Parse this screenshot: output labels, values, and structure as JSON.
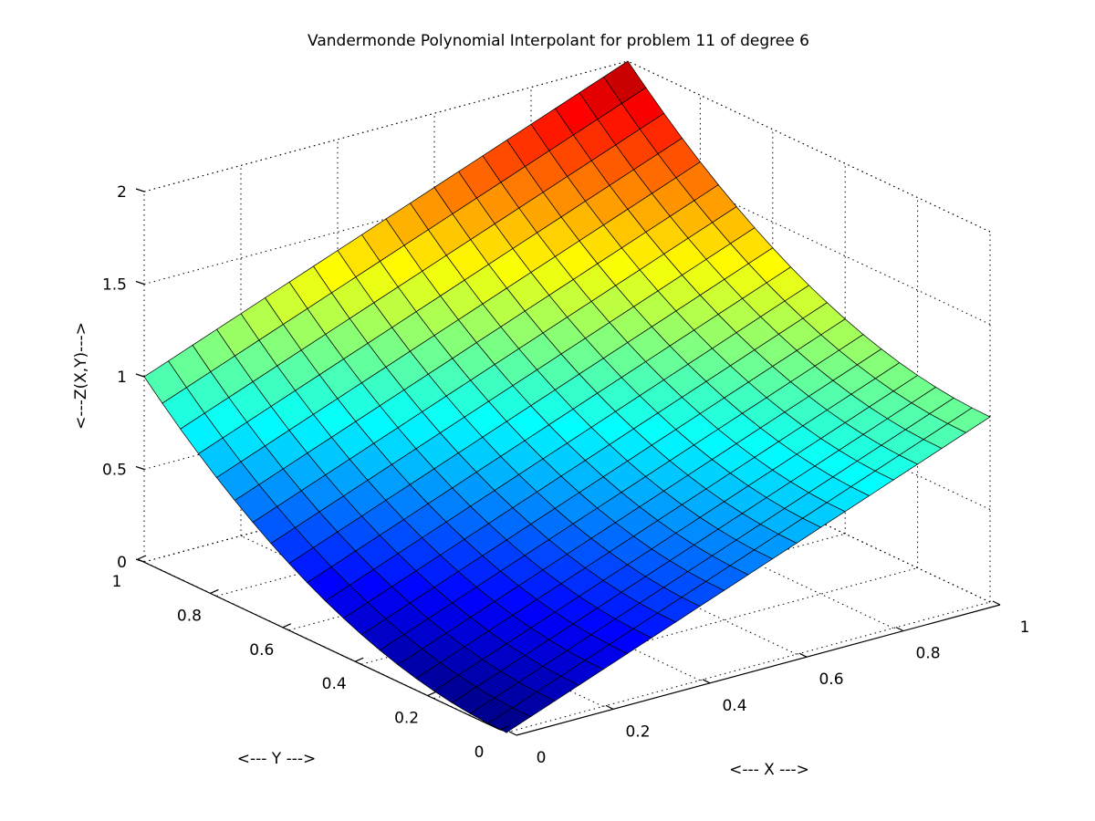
{
  "chart_data": {
    "type": "surface",
    "title": "Vandermonde Polynomial Interpolant for problem 11 of degree 6",
    "xlabel": "<--- X --->",
    "ylabel": "<--- Y --->",
    "zlabel": "<---Z(X,Y)--->",
    "xlim": [
      0,
      1
    ],
    "ylim": [
      0,
      1
    ],
    "zlim": [
      0,
      2
    ],
    "x_ticks": [
      "0",
      "0.2",
      "0.4",
      "0.6",
      "0.8",
      "1"
    ],
    "y_ticks": [
      "0",
      "0.2",
      "0.4",
      "0.6",
      "0.8",
      "1"
    ],
    "z_ticks": [
      "0",
      "0.5",
      "1",
      "1.5",
      "2"
    ],
    "grid": true,
    "colormap": "jet",
    "mesh_resolution": 21,
    "function": "z = x + y^2",
    "corner_values": [
      {
        "x": 0,
        "y": 0,
        "z": 0.0
      },
      {
        "x": 1,
        "y": 0,
        "z": 1.0
      },
      {
        "x": 0,
        "y": 1,
        "z": 1.0
      },
      {
        "x": 1,
        "y": 1,
        "z": 2.0
      }
    ]
  }
}
